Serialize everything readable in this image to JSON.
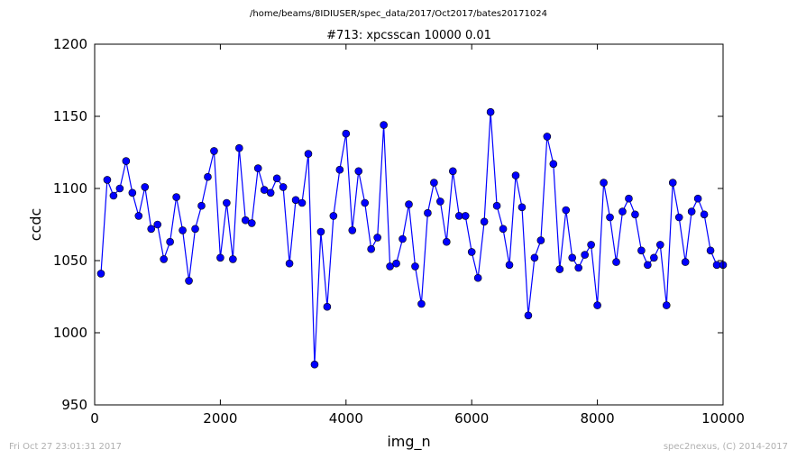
{
  "header": {
    "path": "/home/beams/8IDIUSER/spec_data/2017/Oct2017/bates20171024"
  },
  "footer": {
    "timestamp": "Fri Oct 27 23:01:31 2017",
    "credit": "spec2nexus, (C) 2014-2017"
  },
  "colors": {
    "series": "#0000ff",
    "frame": "#000000",
    "footer_text": "#b0b0b0"
  },
  "chart_data": {
    "type": "line",
    "title": "#713: xpcsscan 10000 0.01",
    "xlabel": "img_n",
    "ylabel": "ccdc",
    "xlim": [
      0,
      10000
    ],
    "ylim": [
      950,
      1200
    ],
    "xticks": [
      0,
      2000,
      4000,
      6000,
      8000,
      10000
    ],
    "yticks": [
      950,
      1000,
      1050,
      1100,
      1150,
      1200
    ],
    "grid": false,
    "markers": "circle",
    "x": [
      100,
      200,
      300,
      400,
      500,
      600,
      700,
      800,
      900,
      1000,
      1100,
      1200,
      1300,
      1400,
      1500,
      1600,
      1700,
      1800,
      1900,
      2000,
      2100,
      2200,
      2300,
      2400,
      2500,
      2600,
      2700,
      2800,
      2900,
      3000,
      3100,
      3200,
      3300,
      3400,
      3500,
      3600,
      3700,
      3800,
      3900,
      4000,
      4100,
      4200,
      4300,
      4400,
      4500,
      4600,
      4700,
      4800,
      4900,
      5000,
      5100,
      5200,
      5300,
      5400,
      5500,
      5600,
      5700,
      5800,
      5900,
      6000,
      6100,
      6200,
      6300,
      6400,
      6500,
      6600,
      6700,
      6800,
      6900,
      7000,
      7100,
      7200,
      7300,
      7400,
      7500,
      7600,
      7700,
      7800,
      7900,
      8000,
      8100,
      8200,
      8300,
      8400,
      8500,
      8600,
      8700,
      8800,
      8900,
      9000,
      9100,
      9200,
      9300,
      9400,
      9500,
      9600,
      9700,
      9800,
      9900,
      10000
    ],
    "y": [
      1041,
      1106,
      1095,
      1100,
      1119,
      1097,
      1081,
      1101,
      1072,
      1075,
      1051,
      1063,
      1094,
      1071,
      1036,
      1072,
      1088,
      1108,
      1126,
      1052,
      1090,
      1051,
      1128,
      1078,
      1076,
      1114,
      1099,
      1097,
      1107,
      1101,
      1048,
      1092,
      1090,
      1124,
      978,
      1070,
      1018,
      1081,
      1113,
      1138,
      1071,
      1112,
      1090,
      1058,
      1066,
      1144,
      1046,
      1048,
      1065,
      1089,
      1046,
      1020,
      1083,
      1104,
      1091,
      1063,
      1112,
      1081,
      1081,
      1056,
      1038,
      1077,
      1153,
      1088,
      1072,
      1047,
      1109,
      1087,
      1012,
      1052,
      1064,
      1136,
      1117,
      1044,
      1085,
      1052,
      1045,
      1054,
      1061,
      1019,
      1104,
      1080,
      1049,
      1084,
      1093,
      1082,
      1057,
      1047,
      1052,
      1061,
      1019,
      1104,
      1080,
      1049,
      1084,
      1093,
      1082,
      1057,
      1047,
      1047
    ]
  }
}
